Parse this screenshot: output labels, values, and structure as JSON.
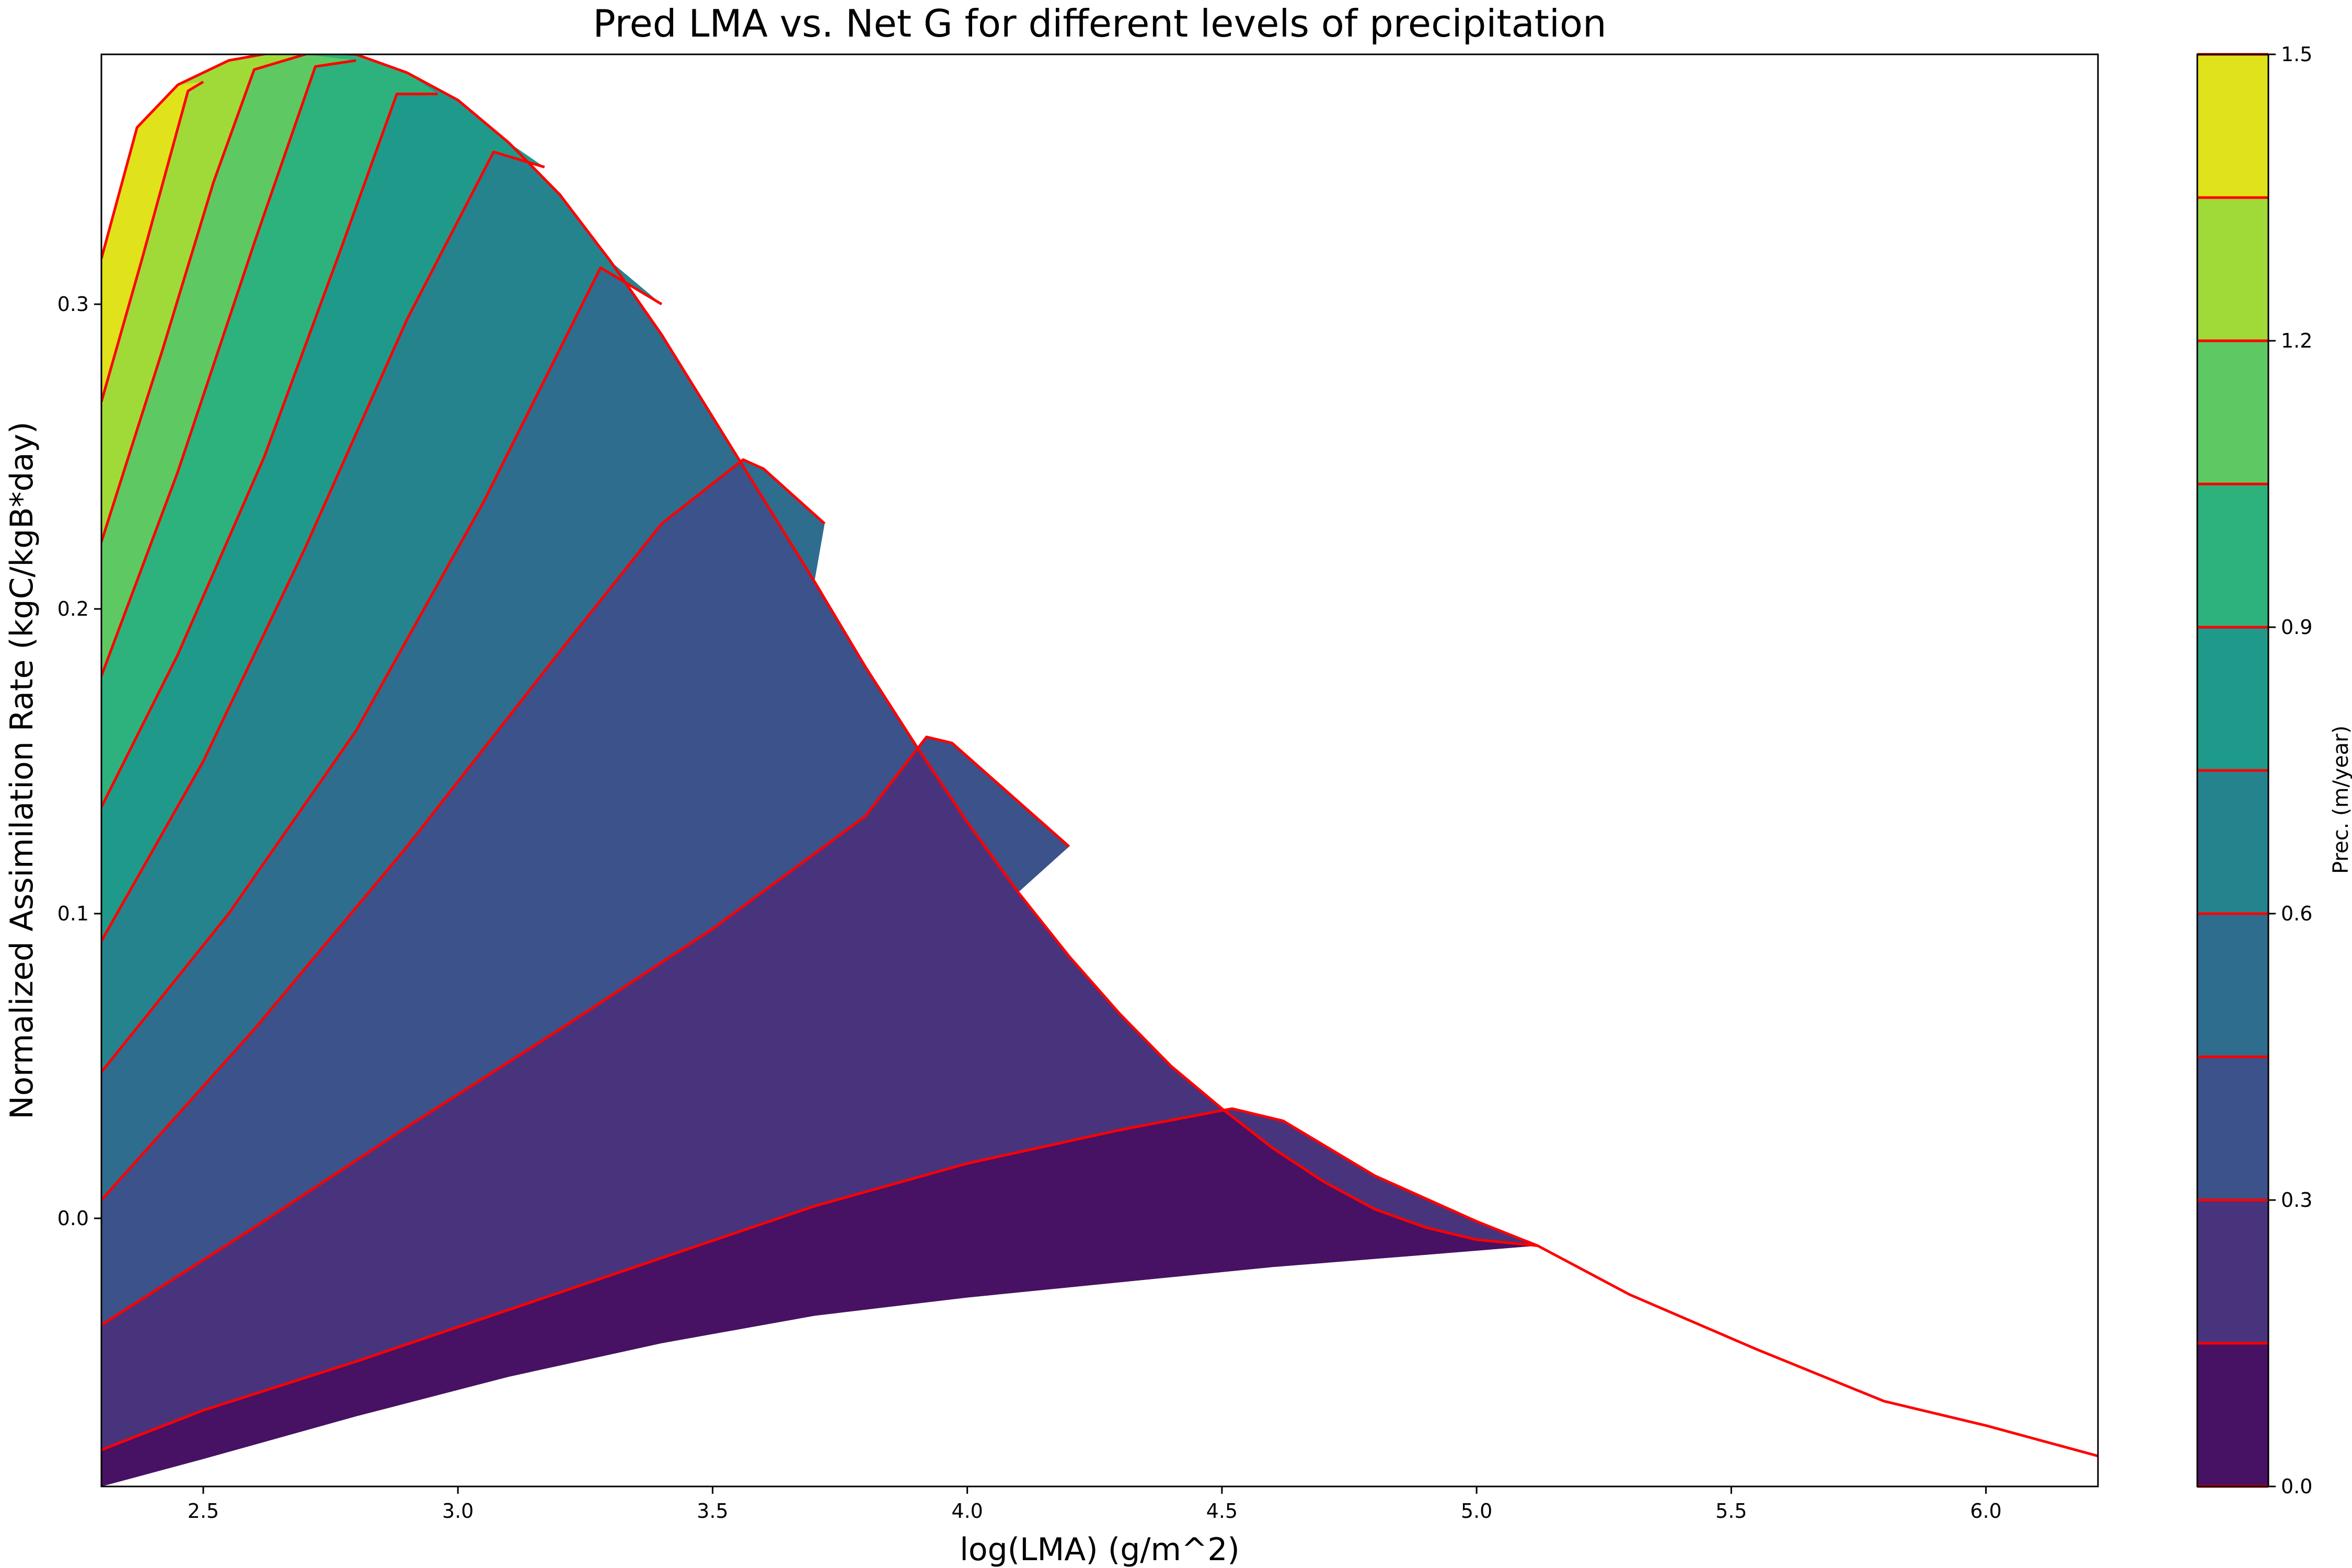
{
  "chart_data": {
    "type": "filled-contour",
    "title": "Pred LMA vs. Net G for different levels of precipitation",
    "xlabel": "log(LMA) (g/m^2)",
    "ylabel": "Normalized Assimilation Rate (kgC/kgB*day)",
    "xlim": [
      2.3,
      6.22
    ],
    "ylim": [
      -0.088,
      0.382
    ],
    "x_ticks": [
      "2.5",
      "3.0",
      "3.5",
      "4.0",
      "4.5",
      "5.0",
      "5.5",
      "6.0"
    ],
    "y_ticks": [
      "0.0",
      "0.1",
      "0.2",
      "0.3"
    ],
    "grid": false,
    "colorbar": {
      "label": "Prec. (m/year)",
      "range": [
        0.0,
        1.5
      ],
      "ticks": [
        "0.0",
        "0.3",
        "0.6",
        "0.9",
        "1.2",
        "1.5"
      ],
      "levels": [
        0.0,
        0.15,
        0.3,
        0.45,
        0.6,
        0.75,
        0.9,
        1.05,
        1.2,
        1.35,
        1.5
      ],
      "colors": [
        "#471164",
        "#48347c",
        "#3b528b",
        "#2e6d8e",
        "#25838e",
        "#1f9a8a",
        "#2db27d",
        "#5ec962",
        "#a0da39",
        "#e0e21b"
      ]
    },
    "contour_line_color": "#ff0000",
    "series": [
      {
        "level": 0.0,
        "points": [
          [
            2.3,
            -0.076
          ],
          [
            2.5,
            -0.063
          ],
          [
            2.8,
            -0.047
          ],
          [
            3.1,
            -0.03
          ],
          [
            3.4,
            -0.013
          ],
          [
            3.7,
            0.004
          ],
          [
            4.0,
            0.018
          ],
          [
            4.3,
            0.029
          ],
          [
            4.52,
            0.036
          ],
          [
            4.62,
            0.032
          ],
          [
            4.8,
            0.014
          ],
          [
            5.0,
            -0.001
          ],
          [
            5.12,
            -0.009
          ],
          [
            5.3,
            -0.025
          ],
          [
            5.55,
            -0.043
          ],
          [
            5.8,
            -0.06
          ],
          [
            6.0,
            -0.068
          ],
          [
            6.22,
            -0.078
          ]
        ]
      },
      {
        "level": 0.15,
        "points": [
          [
            2.3,
            -0.035
          ],
          [
            2.6,
            -0.003
          ],
          [
            2.9,
            0.03
          ],
          [
            3.2,
            0.062
          ],
          [
            3.5,
            0.095
          ],
          [
            3.8,
            0.132
          ],
          [
            3.92,
            0.158
          ],
          [
            3.97,
            0.156
          ],
          [
            4.2,
            0.122
          ]
        ]
      },
      {
        "level": 0.3,
        "points": [
          [
            2.3,
            0.006
          ],
          [
            2.6,
            0.062
          ],
          [
            2.9,
            0.122
          ],
          [
            3.2,
            0.186
          ],
          [
            3.4,
            0.228
          ],
          [
            3.56,
            0.249
          ],
          [
            3.6,
            0.246
          ],
          [
            3.72,
            0.228
          ]
        ]
      },
      {
        "level": 0.45,
        "points": [
          [
            2.3,
            0.048
          ],
          [
            2.55,
            0.1
          ],
          [
            2.8,
            0.16
          ],
          [
            3.05,
            0.235
          ],
          [
            3.28,
            0.312
          ],
          [
            3.4,
            0.3
          ]
        ]
      },
      {
        "level": 0.6,
        "points": [
          [
            2.3,
            0.091
          ],
          [
            2.5,
            0.15
          ],
          [
            2.7,
            0.22
          ],
          [
            2.9,
            0.295
          ],
          [
            3.07,
            0.35
          ],
          [
            3.17,
            0.345
          ]
        ]
      },
      {
        "level": 0.75,
        "points": [
          [
            2.3,
            0.135
          ],
          [
            2.45,
            0.185
          ],
          [
            2.62,
            0.25
          ],
          [
            2.77,
            0.318
          ],
          [
            2.88,
            0.369
          ],
          [
            2.96,
            0.369
          ]
        ]
      },
      {
        "level": 0.9,
        "points": [
          [
            2.3,
            0.178
          ],
          [
            2.45,
            0.245
          ],
          [
            2.6,
            0.32
          ],
          [
            2.72,
            0.378
          ],
          [
            2.8,
            0.38
          ]
        ]
      },
      {
        "level": 1.05,
        "points": [
          [
            2.3,
            0.222
          ],
          [
            2.42,
            0.285
          ],
          [
            2.52,
            0.34
          ],
          [
            2.6,
            0.377
          ],
          [
            2.72,
            0.383
          ]
        ]
      },
      {
        "level": 1.2,
        "points": [
          [
            2.3,
            0.268
          ],
          [
            2.38,
            0.315
          ],
          [
            2.47,
            0.37
          ],
          [
            2.5,
            0.373
          ]
        ]
      }
    ],
    "envelope_top": [
      [
        2.3,
        0.315
      ],
      [
        2.37,
        0.358
      ],
      [
        2.45,
        0.372
      ],
      [
        2.55,
        0.38
      ],
      [
        2.65,
        0.383
      ],
      [
        2.8,
        0.382
      ],
      [
        2.9,
        0.376
      ],
      [
        3.0,
        0.367
      ],
      [
        3.1,
        0.353
      ],
      [
        3.2,
        0.336
      ],
      [
        3.3,
        0.314
      ],
      [
        3.4,
        0.29
      ],
      [
        3.5,
        0.263
      ],
      [
        3.6,
        0.236
      ],
      [
        3.7,
        0.209
      ],
      [
        3.8,
        0.181
      ],
      [
        3.9,
        0.155
      ],
      [
        4.0,
        0.13
      ],
      [
        4.1,
        0.107
      ],
      [
        4.2,
        0.086
      ],
      [
        4.3,
        0.067
      ],
      [
        4.4,
        0.05
      ],
      [
        4.5,
        0.036
      ],
      [
        4.6,
        0.023
      ],
      [
        4.7,
        0.012
      ],
      [
        4.8,
        0.003
      ],
      [
        4.9,
        -0.003
      ],
      [
        5.0,
        -0.007
      ],
      [
        5.12,
        -0.009
      ]
    ],
    "envelope_bottom": [
      [
        2.3,
        -0.088
      ],
      [
        2.5,
        -0.079
      ],
      [
        2.8,
        -0.065
      ],
      [
        3.1,
        -0.052
      ],
      [
        3.4,
        -0.041
      ],
      [
        3.7,
        -0.032
      ],
      [
        4.0,
        -0.026
      ],
      [
        4.3,
        -0.021
      ],
      [
        4.6,
        -0.016
      ],
      [
        4.9,
        -0.012
      ],
      [
        5.12,
        -0.009
      ]
    ]
  }
}
